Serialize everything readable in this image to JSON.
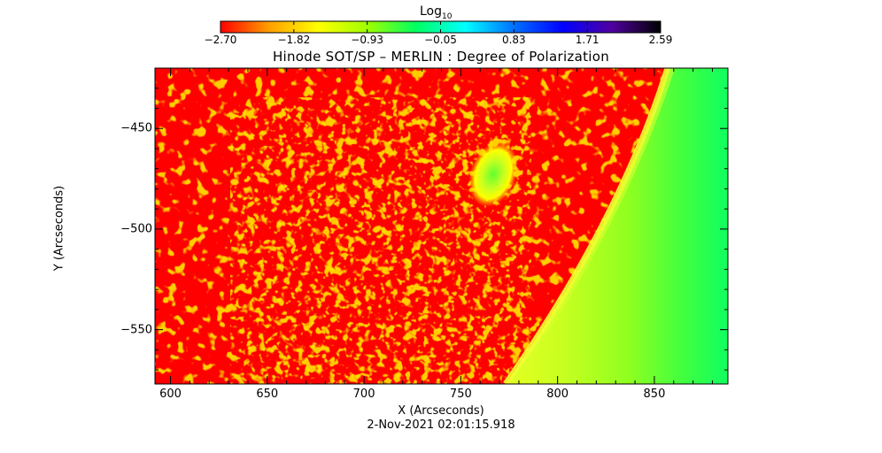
{
  "colorbar": {
    "label_main": "Log",
    "label_sub": "10",
    "ticks": [
      "-2.70",
      "-1.82",
      "-0.93",
      "-0.05",
      "0.83",
      "1.71",
      "2.59"
    ],
    "range": [
      -2.7,
      2.59
    ],
    "colors": [
      "#ff0000",
      "#ffa000",
      "#ffff00",
      "#a0ff00",
      "#00ff60",
      "#00ffff",
      "#0070ff",
      "#0000ff",
      "#5000a0",
      "#000000"
    ]
  },
  "chart_data": {
    "type": "heatmap",
    "title": "Hinode SOT/SP – MERLIN : Degree of Polarization",
    "xlabel": "X (Arcseconds)",
    "ylabel": "Y (Arcseconds)",
    "xlim": [
      592,
      888
    ],
    "ylim": [
      -577,
      -420
    ],
    "x_ticks": [
      600,
      650,
      700,
      750,
      800,
      850
    ],
    "y_ticks": [
      -450,
      -500,
      -550
    ],
    "x_tick_labels": [
      "600",
      "650",
      "700",
      "750",
      "800",
      "850"
    ],
    "y_tick_labels": [
      "−450",
      "−500",
      "−550"
    ],
    "limb": {
      "description_values_log10": {
        "on_disk": -2.7,
        "limb_band": -1.0,
        "off_limb_near": -0.9,
        "off_limb_far": -0.3
      },
      "x_at_top": 855,
      "x_at_bottom": 771
    },
    "features": {
      "polarization_spot_center": [
        763,
        -470
      ],
      "spot_log10_value": -0.5
    }
  },
  "footer": {
    "datetime": "2-Nov-2021 02:01:15.918"
  }
}
